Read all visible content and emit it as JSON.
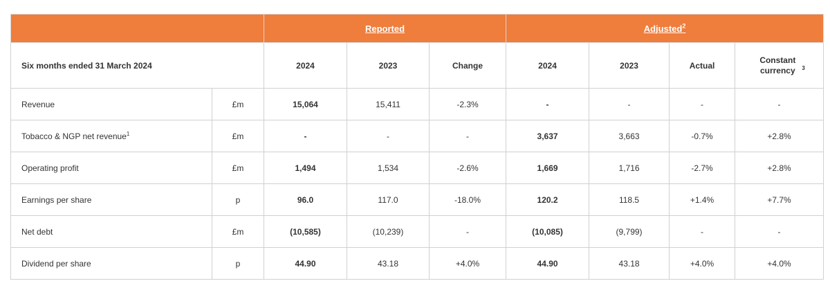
{
  "header": {
    "reported_label": "Reported",
    "adjusted_label": "Adjusted",
    "adjusted_footnote": "2"
  },
  "columns": {
    "period": "Six months ended 31 March 2024",
    "rep_2024": "2024",
    "rep_2023": "2023",
    "rep_change": "Change",
    "adj_2024": "2024",
    "adj_2023": "2023",
    "adj_actual": "Actual",
    "adj_cc": "Constant currency",
    "adj_cc_footnote": "3"
  },
  "rows": [
    {
      "label": "Revenue",
      "footnote": "",
      "unit": "£m",
      "rep_2024": "15,064",
      "rep_2023": "15,411",
      "rep_change": "-2.3%",
      "adj_2024": "-",
      "adj_2023": "-",
      "adj_actual": "-",
      "adj_cc": "-"
    },
    {
      "label": "Tobacco & NGP net revenue",
      "footnote": "1",
      "unit": "£m",
      "rep_2024": "-",
      "rep_2023": "-",
      "rep_change": "-",
      "adj_2024": "3,637",
      "adj_2023": "3,663",
      "adj_actual": "-0.7%",
      "adj_cc": "+2.8%"
    },
    {
      "label": "Operating profit",
      "footnote": "",
      "unit": "£m",
      "rep_2024": "1,494",
      "rep_2023": "1,534",
      "rep_change": "-2.6%",
      "adj_2024": "1,669",
      "adj_2023": "1,716",
      "adj_actual": "-2.7%",
      "adj_cc": "+2.8%"
    },
    {
      "label": "Earnings per share",
      "footnote": "",
      "unit": "p",
      "rep_2024": "96.0",
      "rep_2023": "117.0",
      "rep_change": "-18.0%",
      "adj_2024": "120.2",
      "adj_2023": "118.5",
      "adj_actual": "+1.4%",
      "adj_cc": "+7.7%"
    },
    {
      "label": "Net debt",
      "footnote": "",
      "unit": "£m",
      "rep_2024": "(10,585)",
      "rep_2023": "(10,239)",
      "rep_change": "-",
      "adj_2024": "(10,085)",
      "adj_2023": "(9,799)",
      "adj_actual": "-",
      "adj_cc": "-"
    },
    {
      "label": "Dividend per share",
      "footnote": "",
      "unit": "p",
      "rep_2024": "44.90",
      "rep_2023": "43.18",
      "rep_change": "+4.0%",
      "adj_2024": "44.90",
      "adj_2023": "43.18",
      "adj_actual": "+4.0%",
      "adj_cc": "+4.0%"
    }
  ],
  "colors": {
    "banner": "#ef7d3c",
    "border": "#d0d0d0",
    "text": "#333333"
  }
}
